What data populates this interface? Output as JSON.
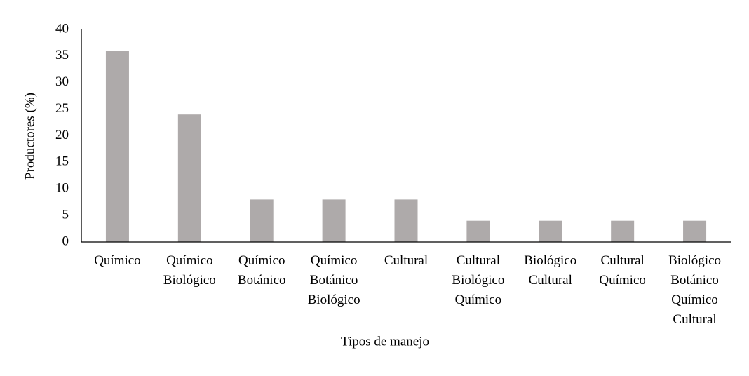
{
  "chart_data": {
    "type": "bar",
    "x_label": "Tipos de manejo",
    "y_label": "Productores (%)",
    "categories": [
      [
        "Químico"
      ],
      [
        "Químico",
        "Biológico"
      ],
      [
        "Químico",
        "Botánico"
      ],
      [
        "Químico",
        "Botánico",
        "Biológico"
      ],
      [
        "Cultural"
      ],
      [
        "Cultural",
        "Biológico",
        "Químico"
      ],
      [
        "Biológico",
        "Cultural"
      ],
      [
        "Cultural",
        "Químico"
      ],
      [
        "Biológico",
        "Botánico",
        "Químico",
        "Cultural"
      ]
    ],
    "values": [
      36,
      24,
      8,
      8,
      8,
      4,
      4,
      4,
      4
    ],
    "color": "#aeaaaa",
    "ylim": [
      0,
      40
    ],
    "yticks": [
      0,
      5,
      10,
      15,
      20,
      25,
      30,
      35,
      40
    ],
    "grid": false
  }
}
